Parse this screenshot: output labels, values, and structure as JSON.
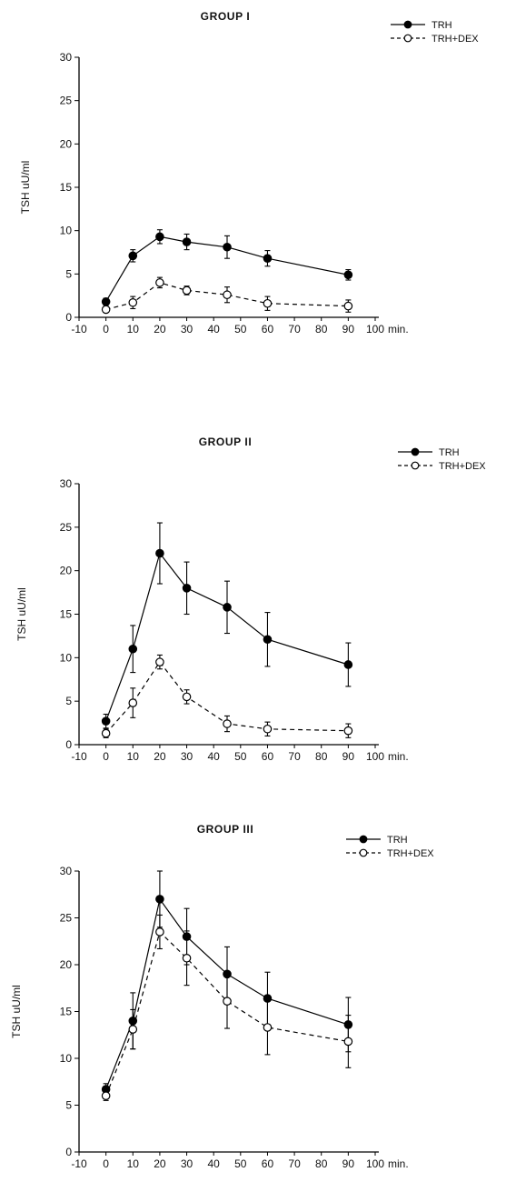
{
  "chart_data": [
    {
      "type": "line",
      "title": "GROUP I",
      "xlabel": "min.",
      "ylabel": "TSH uU/ml",
      "xlim": [
        -10,
        100
      ],
      "ylim": [
        0,
        30
      ],
      "xticks": [
        "-10",
        "0",
        "10",
        "20",
        "30",
        "40",
        "50",
        "60",
        "70",
        "80",
        "90",
        "100"
      ],
      "yticks": [
        "0",
        "5",
        "10",
        "15",
        "20",
        "25",
        "30"
      ],
      "legend_position": "top-right",
      "series": [
        {
          "name": "TRH",
          "marker": "filled-circle",
          "line": "solid",
          "x": [
            0,
            10,
            20,
            30,
            45,
            60,
            90
          ],
          "y": [
            1.8,
            7.1,
            9.3,
            8.7,
            8.1,
            6.8,
            4.9
          ],
          "err": [
            0.4,
            0.7,
            0.8,
            0.9,
            1.3,
            0.9,
            0.6
          ]
        },
        {
          "name": "TRH+DEX",
          "marker": "open-circle",
          "line": "dashed",
          "x": [
            0,
            10,
            20,
            30,
            45,
            60,
            90
          ],
          "y": [
            0.9,
            1.7,
            4.0,
            3.1,
            2.6,
            1.6,
            1.3
          ],
          "err": [
            0.3,
            0.7,
            0.6,
            0.5,
            0.9,
            0.8,
            0.7
          ]
        }
      ]
    },
    {
      "type": "line",
      "title": "GROUP II",
      "xlabel": "min.",
      "ylabel": "TSH uU/ml",
      "xlim": [
        -10,
        100
      ],
      "ylim": [
        0,
        30
      ],
      "xticks": [
        "-10",
        "0",
        "10",
        "20",
        "30",
        "40",
        "50",
        "60",
        "70",
        "80",
        "90",
        "100"
      ],
      "yticks": [
        "0",
        "5",
        "10",
        "15",
        "20",
        "25",
        "30"
      ],
      "legend_position": "top-right",
      "series": [
        {
          "name": "TRH",
          "marker": "filled-circle",
          "line": "solid",
          "x": [
            0,
            10,
            20,
            30,
            45,
            60,
            90
          ],
          "y": [
            2.7,
            11.0,
            22.0,
            18.0,
            15.8,
            12.1,
            9.2
          ],
          "err": [
            0.8,
            2.7,
            3.5,
            3.0,
            3.0,
            3.1,
            2.5
          ]
        },
        {
          "name": "TRH+DEX",
          "marker": "open-circle",
          "line": "dashed",
          "x": [
            0,
            10,
            20,
            30,
            45,
            60,
            90
          ],
          "y": [
            1.3,
            4.8,
            9.5,
            5.5,
            2.4,
            1.8,
            1.6
          ],
          "err": [
            0.5,
            1.7,
            0.8,
            0.8,
            0.9,
            0.8,
            0.8
          ]
        }
      ]
    },
    {
      "type": "line",
      "title": "GROUP III",
      "xlabel": "min.",
      "ylabel": "TSH uU/ml",
      "xlim": [
        -10,
        100
      ],
      "ylim": [
        0,
        30
      ],
      "xticks": [
        "-10",
        "0",
        "10",
        "20",
        "30",
        "40",
        "50",
        "60",
        "70",
        "80",
        "90",
        "100"
      ],
      "yticks": [
        "0",
        "5",
        "10",
        "15",
        "20",
        "25",
        "30"
      ],
      "legend_position": "top-right",
      "series": [
        {
          "name": "TRH",
          "marker": "filled-circle",
          "line": "solid",
          "x": [
            0,
            10,
            20,
            30,
            45,
            60,
            90
          ],
          "y": [
            6.7,
            14.0,
            27.0,
            23.0,
            19.0,
            16.4,
            13.6
          ],
          "err": [
            0.6,
            3.0,
            3.0,
            3.0,
            2.9,
            2.8,
            2.9
          ]
        },
        {
          "name": "TRH+DEX",
          "marker": "open-circle",
          "line": "dashed",
          "x": [
            0,
            10,
            20,
            30,
            45,
            60,
            90
          ],
          "y": [
            6.0,
            13.1,
            23.5,
            20.7,
            16.1,
            13.3,
            11.8
          ],
          "err": [
            0.5,
            2.1,
            1.8,
            2.9,
            2.9,
            2.9,
            2.8
          ]
        }
      ]
    }
  ]
}
